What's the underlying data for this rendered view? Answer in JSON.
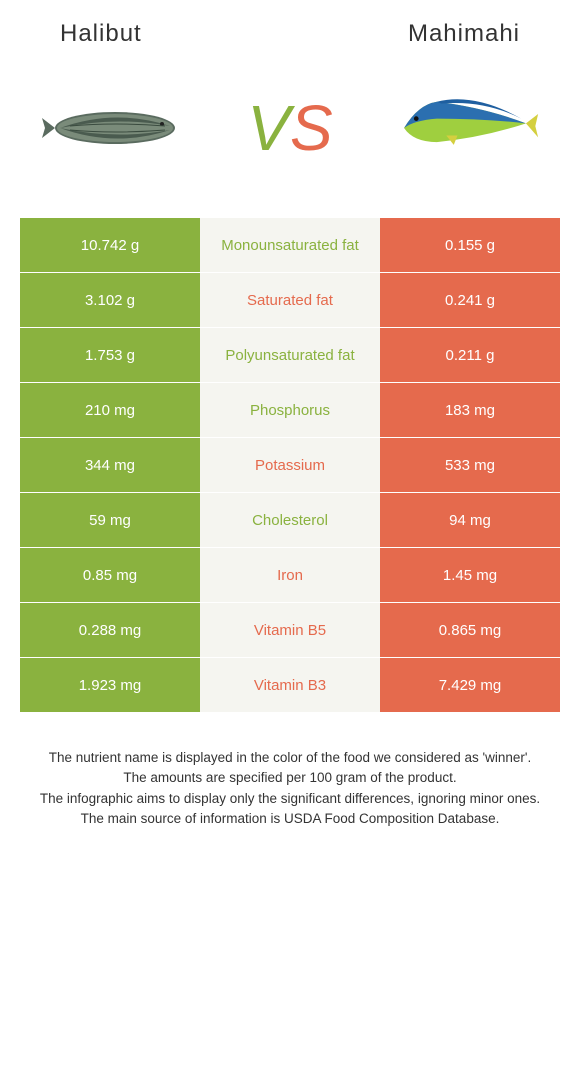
{
  "header": {
    "left_title": "Halibut",
    "right_title": "Mahimahi"
  },
  "vs": {
    "v": "V",
    "s": "S"
  },
  "colors": {
    "left": "#8ab23f",
    "right": "#e56a4d",
    "mid_bg": "#f5f5f0"
  },
  "rows": [
    {
      "left": "10.742 g",
      "label": "Monounsaturated fat",
      "right": "0.155 g",
      "winner": "left"
    },
    {
      "left": "3.102 g",
      "label": "Saturated fat",
      "right": "0.241 g",
      "winner": "right"
    },
    {
      "left": "1.753 g",
      "label": "Polyunsaturated fat",
      "right": "0.211 g",
      "winner": "left"
    },
    {
      "left": "210 mg",
      "label": "Phosphorus",
      "right": "183 mg",
      "winner": "left"
    },
    {
      "left": "344 mg",
      "label": "Potassium",
      "right": "533 mg",
      "winner": "right"
    },
    {
      "left": "59 mg",
      "label": "Cholesterol",
      "right": "94 mg",
      "winner": "left"
    },
    {
      "left": "0.85 mg",
      "label": "Iron",
      "right": "1.45 mg",
      "winner": "right"
    },
    {
      "left": "0.288 mg",
      "label": "Vitamin B5",
      "right": "0.865 mg",
      "winner": "right"
    },
    {
      "left": "1.923 mg",
      "label": "Vitamin B3",
      "right": "7.429 mg",
      "winner": "right"
    }
  ],
  "footer": {
    "line1": "The nutrient name is displayed in the color of the food we considered as 'winner'.",
    "line2": "The amounts are specified per 100 gram of the product.",
    "line3": "The infographic aims to display only the significant differences, ignoring minor ones.",
    "line4": "The main source of information is USDA Food Composition Database."
  }
}
